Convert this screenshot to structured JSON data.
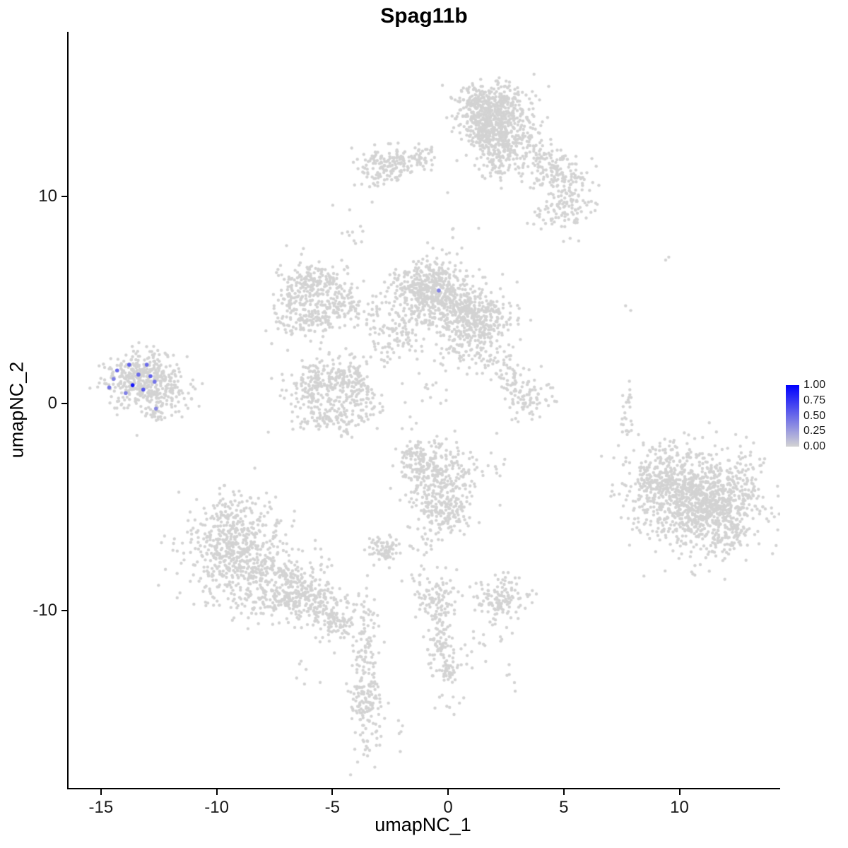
{
  "title": "Spag11b",
  "legend": {
    "labels": [
      "1.00",
      "0.75",
      "0.50",
      "0.25",
      "0.00"
    ],
    "color_high": "#0000ff",
    "color_low": "#d3d3d3"
  },
  "chart_data": {
    "type": "scatter",
    "title": "Spag11b",
    "xlabel": "umapNC_1",
    "ylabel": "umapNC_2",
    "xlim": [
      -16.4,
      14.35
    ],
    "ylim": [
      -18.55,
      17.95
    ],
    "x_ticks": [
      -15,
      -10,
      -5,
      0,
      5,
      10
    ],
    "y_ticks": [
      -10,
      0,
      10
    ],
    "grid": false,
    "legend_position": "right",
    "colorbar": {
      "min": 0.0,
      "max": 1.0,
      "ticks": [
        1.0,
        0.75,
        0.5,
        0.25,
        0.0
      ]
    },
    "point_color_low": "#d3d3d3",
    "point_color_high": "#0000ff",
    "point_radius": 2.2,
    "highlight_radius": 2.8,
    "seed": 1337,
    "background_clusters": [
      {
        "cx": 1.9,
        "cy": 14.3,
        "sx": 0.75,
        "sy": 0.55,
        "n": 420
      },
      {
        "cx": 1.7,
        "cy": 13.2,
        "sx": 0.6,
        "sy": 0.5,
        "n": 250
      },
      {
        "cx": 2.1,
        "cy": 12.0,
        "sx": 0.45,
        "sy": 0.6,
        "n": 120
      },
      {
        "cx": 3.1,
        "cy": 12.6,
        "sx": 0.6,
        "sy": 0.7,
        "n": 120
      },
      {
        "cx": 4.5,
        "cy": 11.3,
        "sx": 0.6,
        "sy": 0.6,
        "n": 110
      },
      {
        "cx": 5.3,
        "cy": 10.3,
        "sx": 0.55,
        "sy": 0.7,
        "n": 90
      },
      {
        "cx": 4.9,
        "cy": 9.2,
        "sx": 0.7,
        "sy": 0.5,
        "n": 60
      },
      {
        "cx": -2.5,
        "cy": 11.6,
        "sx": 0.75,
        "sy": 0.4,
        "n": 140
      },
      {
        "cx": -1.2,
        "cy": 11.9,
        "sx": 0.4,
        "sy": 0.3,
        "n": 40
      },
      {
        "cx": -3.3,
        "cy": 10.6,
        "sx": 0.3,
        "sy": 0.4,
        "n": 15
      },
      {
        "cx": -4.2,
        "cy": 8.0,
        "sx": 0.6,
        "sy": 0.8,
        "n": 12
      },
      {
        "cx": 0.6,
        "cy": 7.8,
        "sx": 0.5,
        "sy": 0.9,
        "n": 8
      },
      {
        "cx": -0.8,
        "cy": 5.4,
        "sx": 0.85,
        "sy": 0.75,
        "n": 550
      },
      {
        "cx": 1.2,
        "cy": 4.3,
        "sx": 0.8,
        "sy": 0.65,
        "n": 380
      },
      {
        "cx": -6.6,
        "cy": 4.9,
        "sx": 0.55,
        "sy": 0.9,
        "n": 150
      },
      {
        "cx": -5.6,
        "cy": 5.9,
        "sx": 0.6,
        "sy": 0.4,
        "n": 110
      },
      {
        "cx": -4.7,
        "cy": 5.0,
        "sx": 0.45,
        "sy": 0.7,
        "n": 90
      },
      {
        "cx": -5.6,
        "cy": 4.2,
        "sx": 0.7,
        "sy": 0.4,
        "n": 80
      },
      {
        "cx": -3.2,
        "cy": 4.6,
        "sx": 0.7,
        "sy": 0.5,
        "n": 40
      },
      {
        "cx": -5.9,
        "cy": 0.6,
        "sx": 0.55,
        "sy": 0.8,
        "n": 130
      },
      {
        "cx": -4.9,
        "cy": 1.4,
        "sx": 0.6,
        "sy": 0.45,
        "n": 110
      },
      {
        "cx": -3.9,
        "cy": 0.6,
        "sx": 0.5,
        "sy": 0.7,
        "n": 110
      },
      {
        "cx": -4.9,
        "cy": -0.6,
        "sx": 0.8,
        "sy": 0.45,
        "n": 110
      },
      {
        "cx": -2.7,
        "cy": 2.9,
        "sx": 0.6,
        "sy": 0.7,
        "n": 50
      },
      {
        "cx": -1.8,
        "cy": 3.4,
        "sx": 0.5,
        "sy": 0.5,
        "n": 40
      },
      {
        "cx": 0.6,
        "cy": 2.9,
        "sx": 0.5,
        "sy": 0.6,
        "n": 60
      },
      {
        "cx": 1.8,
        "cy": 2.3,
        "sx": 0.5,
        "sy": 0.5,
        "n": 40
      },
      {
        "cx": 3.4,
        "cy": 0.3,
        "sx": 0.5,
        "sy": 0.55,
        "n": 90
      },
      {
        "cx": 2.6,
        "cy": 1.4,
        "sx": 0.4,
        "sy": 0.4,
        "n": 25
      },
      {
        "cx": -13.3,
        "cy": 1.2,
        "sx": 0.75,
        "sy": 0.65,
        "n": 380
      },
      {
        "cx": -12.3,
        "cy": 0.6,
        "sx": 0.5,
        "sy": 0.5,
        "n": 60
      },
      {
        "cx": -11.3,
        "cy": 1.0,
        "sx": 0.5,
        "sy": 0.6,
        "n": 18
      },
      {
        "cx": -12.7,
        "cy": -0.4,
        "sx": 0.4,
        "sy": 0.3,
        "n": 30
      },
      {
        "cx": -0.4,
        "cy": -3.6,
        "sx": 0.75,
        "sy": 0.8,
        "n": 300
      },
      {
        "cx": -0.1,
        "cy": -5.2,
        "sx": 0.5,
        "sy": 0.5,
        "n": 120
      },
      {
        "cx": -1.4,
        "cy": -2.6,
        "sx": 0.4,
        "sy": 0.4,
        "n": 60
      },
      {
        "cx": -2.7,
        "cy": -7.1,
        "sx": 0.35,
        "sy": 0.35,
        "n": 70
      },
      {
        "cx": -0.9,
        "cy": -6.6,
        "sx": 0.4,
        "sy": 0.5,
        "n": 20
      },
      {
        "cx": -9.3,
        "cy": -7.0,
        "sx": 1.1,
        "sy": 1.1,
        "n": 500
      },
      {
        "cx": -7.5,
        "cy": -8.6,
        "sx": 1.0,
        "sy": 0.8,
        "n": 300
      },
      {
        "cx": -6.0,
        "cy": -9.6,
        "sx": 0.8,
        "sy": 0.6,
        "n": 180
      },
      {
        "cx": -4.9,
        "cy": -10.6,
        "sx": 0.5,
        "sy": 0.5,
        "n": 80
      },
      {
        "cx": -9.0,
        "cy": -5.2,
        "sx": 0.8,
        "sy": 0.5,
        "n": 60
      },
      {
        "cx": -3.6,
        "cy": -11.2,
        "sx": 0.3,
        "sy": 0.9,
        "n": 70
      },
      {
        "cx": -3.55,
        "cy": -14.3,
        "sx": 0.35,
        "sy": 1.1,
        "n": 150
      },
      {
        "cx": -3.5,
        "cy": -16.6,
        "sx": 0.2,
        "sy": 0.4,
        "n": 8
      },
      {
        "cx": -0.7,
        "cy": -9.3,
        "sx": 0.5,
        "sy": 0.55,
        "n": 90
      },
      {
        "cx": -0.35,
        "cy": -11.3,
        "sx": 0.3,
        "sy": 0.8,
        "n": 80
      },
      {
        "cx": 0.1,
        "cy": -12.9,
        "sx": 0.35,
        "sy": 0.5,
        "n": 50
      },
      {
        "cx": 2.2,
        "cy": -9.4,
        "sx": 0.55,
        "sy": 0.5,
        "n": 130
      },
      {
        "cx": 1.2,
        "cy": -11.7,
        "sx": 0.7,
        "sy": 0.6,
        "n": 18
      },
      {
        "cx": 10.6,
        "cy": -4.6,
        "sx": 1.35,
        "sy": 1.2,
        "n": 900
      },
      {
        "cx": 11.6,
        "cy": -5.4,
        "sx": 0.9,
        "sy": 0.8,
        "n": 300
      },
      {
        "cx": 9.2,
        "cy": -3.4,
        "sx": 0.7,
        "sy": 0.7,
        "n": 150
      },
      {
        "cx": 12.9,
        "cy": -3.4,
        "sx": 0.4,
        "sy": 0.7,
        "n": 30
      },
      {
        "cx": 7.7,
        "cy": -0.4,
        "sx": 0.15,
        "sy": 0.9,
        "n": 26
      },
      {
        "cx": 9.4,
        "cy": 6.9,
        "sx": 0.1,
        "sy": 0.1,
        "n": 2
      },
      {
        "cx": 7.7,
        "cy": 4.6,
        "sx": 0.15,
        "sy": 0.15,
        "n": 2
      },
      {
        "cx": 2.6,
        "cy": 2.3,
        "sx": 0.5,
        "sy": 0.8,
        "n": 8
      },
      {
        "cx": -0.6,
        "cy": 1.2,
        "sx": 0.7,
        "sy": 0.5,
        "n": 12
      },
      {
        "cx": -1.5,
        "cy": -0.8,
        "sx": 0.6,
        "sy": 0.8,
        "n": 8
      },
      {
        "cx": -6.2,
        "cy": -13.0,
        "sx": 0.4,
        "sy": 0.5,
        "n": 6
      },
      {
        "cx": -2.1,
        "cy": -16.0,
        "sx": 0.3,
        "sy": 0.6,
        "n": 5
      },
      {
        "cx": 0.0,
        "cy": -14.6,
        "sx": 0.5,
        "sy": 0.4,
        "n": 6
      },
      {
        "cx": 2.4,
        "cy": -13.2,
        "sx": 0.4,
        "sy": 0.4,
        "n": 5
      },
      {
        "cx": 1.8,
        "cy": -3.0,
        "sx": 0.4,
        "sy": 0.6,
        "n": 10
      }
    ],
    "highlighted_cells": [
      {
        "x": -14.64,
        "y": 0.78,
        "value": 0.45
      },
      {
        "x": -14.45,
        "y": 1.19,
        "value": 0.4
      },
      {
        "x": -14.3,
        "y": 1.6,
        "value": 0.5
      },
      {
        "x": -13.93,
        "y": 0.51,
        "value": 0.4
      },
      {
        "x": -13.78,
        "y": 1.88,
        "value": 0.55
      },
      {
        "x": -13.63,
        "y": 0.89,
        "value": 0.9
      },
      {
        "x": -13.38,
        "y": 1.4,
        "value": 0.5
      },
      {
        "x": -13.17,
        "y": 0.68,
        "value": 0.6
      },
      {
        "x": -13.02,
        "y": 1.88,
        "value": 0.5
      },
      {
        "x": -12.86,
        "y": 1.33,
        "value": 0.55
      },
      {
        "x": -12.68,
        "y": 1.06,
        "value": 0.45
      },
      {
        "x": -12.62,
        "y": -0.24,
        "value": 0.35
      },
      {
        "x": -0.4,
        "y": 5.46,
        "value": 0.4
      }
    ]
  }
}
